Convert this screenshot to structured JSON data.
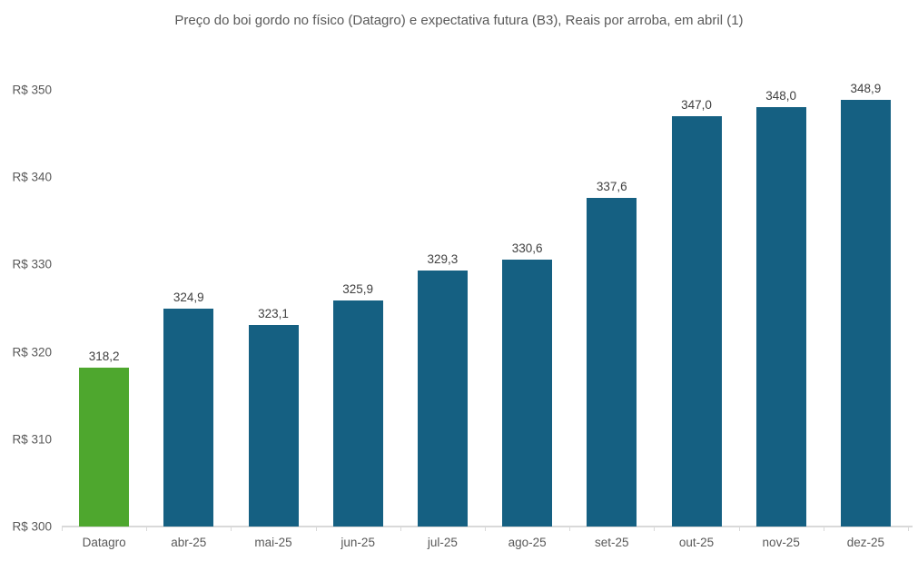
{
  "colors": {
    "highlight_bar": "#4EA72E",
    "default_bar": "#156082",
    "axis_line": "#D9D9D9",
    "axis_text": "#595959",
    "value_label_text": "#3F3F3F",
    "title_text": "#595959",
    "background": "#FFFFFF"
  },
  "chart_data": {
    "type": "bar",
    "title": "Preço do boi gordo no físico (Datagro) e expectativa futura (B3), Reais por arroba, em abril (1)",
    "categories": [
      "Datagro",
      "abr-25",
      "mai-25",
      "jun-25",
      "jul-25",
      "ago-25",
      "set-25",
      "out-25",
      "nov-25",
      "dez-25"
    ],
    "values": [
      318.2,
      324.9,
      323.1,
      325.9,
      329.3,
      330.6,
      337.6,
      347.0,
      348.0,
      348.9
    ],
    "value_labels": [
      "318,2",
      "324,9",
      "323,1",
      "325,9",
      "329,3",
      "330,6",
      "337,6",
      "347,0",
      "348,0",
      "348,9"
    ],
    "bar_colors": [
      "#4EA72E",
      "#156082",
      "#156082",
      "#156082",
      "#156082",
      "#156082",
      "#156082",
      "#156082",
      "#156082",
      "#156082"
    ],
    "xlabel": "",
    "ylabel": "",
    "ylim": [
      300,
      350
    ],
    "yticks": [
      300,
      310,
      320,
      330,
      340,
      350
    ],
    "ytick_labels": [
      "R$ 300",
      "R$ 310",
      "R$ 320",
      "R$ 330",
      "R$ 340",
      "R$ 350"
    ],
    "grid": false,
    "legend": "none",
    "data_labels": "outside-end",
    "unit": "Reais por arroba"
  }
}
